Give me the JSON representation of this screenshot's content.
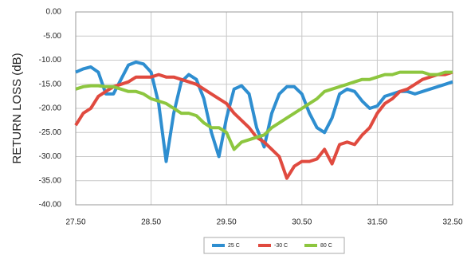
{
  "chart_data": {
    "type": "line",
    "y_label": "RETURN LOSS (dB)",
    "x": [
      27.5,
      27.6,
      27.7,
      27.8,
      27.9,
      28.0,
      28.1,
      28.2,
      28.3,
      28.4,
      28.5,
      28.6,
      28.7,
      28.8,
      28.9,
      29.0,
      29.1,
      29.2,
      29.3,
      29.4,
      29.5,
      29.6,
      29.7,
      29.8,
      29.9,
      30.0,
      30.1,
      30.2,
      30.3,
      30.4,
      30.5,
      30.6,
      30.7,
      30.8,
      30.9,
      31.0,
      31.1,
      31.2,
      31.3,
      31.4,
      31.5,
      31.6,
      31.7,
      31.8,
      31.9,
      32.0,
      32.1,
      32.2,
      32.3,
      32.4,
      32.5
    ],
    "series": [
      {
        "name": "25 C",
        "color": "#2e8ed0",
        "values": [
          -12.5,
          -11.8,
          -11.4,
          -12.5,
          -17,
          -17,
          -14,
          -11,
          -10.4,
          -10.8,
          -12.5,
          -19,
          -31,
          -21,
          -14.5,
          -13,
          -14,
          -18,
          -25,
          -30,
          -22,
          -16,
          -15.3,
          -17,
          -24,
          -28,
          -21,
          -17,
          -15.5,
          -15.5,
          -17,
          -21,
          -24,
          -25,
          -22,
          -17,
          -16,
          -16.5,
          -18.5,
          -20,
          -19.5,
          -17.5,
          -17,
          -16.5,
          -16.5,
          -17,
          -16.5,
          -16,
          -15.5,
          -15,
          -14.5
        ]
      },
      {
        "name": "-30 C",
        "color": "#e04a3f",
        "values": [
          -23.5,
          -21,
          -20,
          -17.5,
          -16.5,
          -15.5,
          -15,
          -14.5,
          -13.5,
          -13.5,
          -13.5,
          -13,
          -13.5,
          -13.5,
          -14,
          -14.5,
          -15,
          -16,
          -17,
          -18,
          -19,
          -21,
          -22.5,
          -24,
          -26,
          -27,
          -28.5,
          -30,
          -34.5,
          -32,
          -31,
          -31,
          -30.5,
          -28.5,
          -31.5,
          -27.5,
          -27,
          -27.5,
          -25.5,
          -24,
          -21,
          -19,
          -18,
          -16.5,
          -16,
          -15,
          -14,
          -13.5,
          -13,
          -13,
          -12.5
        ]
      },
      {
        "name": "80 C",
        "color": "#8dc63f",
        "values": [
          -16,
          -15.5,
          -15.3,
          -15.3,
          -15.5,
          -15.5,
          -16,
          -16.5,
          -16.5,
          -17,
          -18,
          -18.5,
          -19,
          -20,
          -21,
          -21,
          -21.5,
          -23,
          -24,
          -24,
          -25,
          -28.5,
          -27,
          -26.5,
          -26,
          -25.5,
          -24,
          -23,
          -22,
          -21,
          -20,
          -19,
          -18,
          -16.5,
          -16,
          -15.5,
          -15,
          -14.5,
          -14,
          -14,
          -13.5,
          -13,
          -13,
          -12.5,
          -12.5,
          -12.5,
          -12.5,
          -13,
          -13,
          -12.5,
          -12.5
        ]
      }
    ],
    "xlim": [
      27.5,
      32.5
    ],
    "xticks": [
      {
        "value": 27.5,
        "label": "27.50"
      },
      {
        "value": 28.5,
        "label": "28.50"
      },
      {
        "value": 29.5,
        "label": "29.50"
      },
      {
        "value": 30.5,
        "label": "30.50"
      },
      {
        "value": 31.5,
        "label": "31.50"
      },
      {
        "value": 32.5,
        "label": "32.50"
      }
    ],
    "ylim": [
      -40,
      0
    ],
    "yticks": [
      {
        "value": 0,
        "label": "0.00"
      },
      {
        "value": -5,
        "label": "-5.00"
      },
      {
        "value": -10,
        "label": "-10.00"
      },
      {
        "value": -15,
        "label": "-15.00"
      },
      {
        "value": -20,
        "label": "-20.00"
      },
      {
        "value": -25,
        "label": "-25.00"
      },
      {
        "value": -30,
        "label": "-30.00"
      },
      {
        "value": -35,
        "label": "-35.00"
      },
      {
        "value": -40,
        "label": "-40.00"
      }
    ],
    "grid": true,
    "legend": "bottom"
  }
}
